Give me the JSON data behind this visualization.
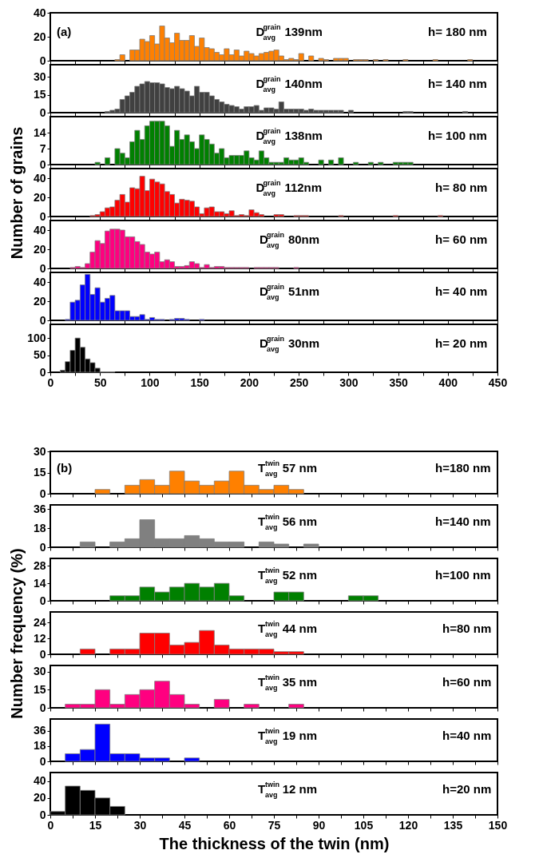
{
  "chart_data": [
    {
      "type": "histogram",
      "color": "#ff8000",
      "bins": [
        65,
        70,
        75,
        80,
        85,
        90,
        95,
        100,
        105,
        110,
        115,
        120,
        125,
        130,
        135,
        140,
        145,
        150,
        155,
        160,
        165,
        170,
        175,
        180,
        185,
        190,
        195,
        200,
        205,
        210,
        215,
        220,
        225,
        230,
        235,
        240,
        245,
        250,
        255,
        260,
        265,
        270,
        275,
        280,
        285,
        290,
        295,
        300,
        305,
        310,
        315,
        320,
        325,
        330,
        335,
        340,
        345,
        350,
        355,
        360,
        365,
        370,
        375,
        380,
        385,
        390,
        395,
        400,
        405,
        410,
        415,
        420,
        425
      ],
      "values": [
        1,
        5,
        0,
        9,
        9,
        18,
        16,
        21,
        14,
        29,
        19,
        15,
        23,
        17,
        17,
        21,
        12,
        19,
        11,
        10,
        7,
        5,
        10,
        5,
        9,
        4,
        8,
        6,
        4,
        6,
        7,
        8,
        9,
        4,
        1,
        2,
        1,
        6,
        0,
        4,
        0,
        2,
        1,
        0,
        2,
        2,
        2,
        0,
        1,
        1,
        1,
        0,
        1,
        0,
        1,
        0,
        0,
        0,
        1,
        0,
        0,
        0,
        0,
        0,
        1,
        0,
        0,
        0,
        0,
        0,
        0,
        1
      ],
      "xlim": [
        0,
        450
      ],
      "xticks": [
        0,
        {
          "value": 25,
          "label": null
        },
        50,
        {
          "value": 75,
          "label": null
        },
        100,
        {
          "value": 125,
          "label": null
        },
        150,
        {
          "value": 175,
          "label": null
        },
        200,
        {
          "value": 225,
          "label": null
        },
        250,
        {
          "value": 275,
          "label": null
        },
        300,
        {
          "value": 325,
          "label": null
        },
        350,
        {
          "value": 375,
          "label": null
        },
        400,
        {
          "value": 425,
          "label": null
        },
        450
      ],
      "ylim": [
        0,
        40
      ],
      "yticks": [
        0,
        20,
        40
      ],
      "tick_labels": "y",
      "annotations": [
        "(a)",
        "D$^{grain}$$_{avg}$ 139nm",
        "h= 180 nm"
      ]
    },
    {
      "type": "histogram",
      "color": "#404040",
      "bins": [
        55,
        60,
        65,
        70,
        75,
        80,
        85,
        90,
        95,
        100,
        105,
        110,
        115,
        120,
        125,
        130,
        135,
        140,
        145,
        150,
        155,
        160,
        165,
        170,
        175,
        180,
        185,
        190,
        195,
        200,
        205,
        210,
        215,
        220,
        225,
        230,
        235,
        240,
        245,
        250,
        255,
        260,
        265,
        270,
        275,
        280,
        285,
        290,
        295,
        300,
        305,
        310,
        315,
        320,
        325,
        330,
        335,
        340,
        345,
        350,
        355,
        360,
        365,
        370,
        375,
        380,
        385,
        390,
        395,
        400,
        405,
        410,
        415,
        420
      ],
      "values": [
        1,
        2,
        3,
        11,
        14,
        17,
        22,
        24,
        26,
        25,
        25,
        24,
        21,
        20,
        22,
        20,
        18,
        14,
        22,
        17,
        17,
        14,
        11,
        9,
        7,
        6,
        5,
        3,
        5,
        5,
        6,
        2,
        4,
        4,
        3,
        9,
        3,
        3,
        3,
        3,
        2,
        3,
        2,
        2,
        2,
        2,
        2,
        2,
        0,
        2,
        0,
        0,
        0,
        0,
        0,
        0,
        0,
        0,
        0,
        0,
        1,
        1,
        0,
        0,
        0,
        0,
        0,
        0,
        0,
        0,
        0,
        0,
        1
      ],
      "xlim": [
        0,
        450
      ],
      "xticks": [
        0,
        {
          "value": 25,
          "label": null
        },
        50,
        {
          "value": 75,
          "label": null
        },
        100,
        {
          "value": 125,
          "label": null
        },
        150,
        {
          "value": 175,
          "label": null
        },
        200,
        {
          "value": 225,
          "label": null
        },
        250,
        {
          "value": 275,
          "label": null
        },
        300,
        {
          "value": 325,
          "label": null
        },
        350,
        {
          "value": 375,
          "label": null
        },
        400,
        {
          "value": 425,
          "label": null
        },
        450
      ],
      "ylim": [
        0,
        40
      ],
      "yticks": [
        0,
        15,
        30
      ],
      "tick_labels": "y",
      "annotations": [
        "D$^{grain}$$_{avg}$ 140nm",
        "h= 140 nm"
      ]
    },
    {
      "type": "histogram",
      "color": "#008000",
      "bins": [
        45,
        50,
        55,
        60,
        65,
        70,
        75,
        80,
        85,
        90,
        95,
        100,
        105,
        110,
        115,
        120,
        125,
        130,
        135,
        140,
        145,
        150,
        155,
        160,
        165,
        170,
        175,
        180,
        185,
        190,
        195,
        200,
        205,
        210,
        215,
        220,
        225,
        230,
        235,
        240,
        245,
        250,
        255,
        260,
        265,
        270,
        275,
        280,
        285,
        290,
        295,
        300,
        305,
        310,
        315,
        320,
        325,
        330,
        335,
        340,
        345,
        350,
        355,
        360,
        365
      ],
      "values": [
        1,
        0,
        3,
        0,
        7,
        5,
        3,
        10,
        15,
        11,
        17,
        19,
        19,
        19,
        17,
        8,
        15,
        11,
        13,
        10,
        7,
        13,
        11,
        9,
        5,
        7,
        3,
        4,
        4,
        4,
        6,
        3,
        2,
        6,
        3,
        1,
        1,
        1,
        3,
        2,
        2,
        3,
        1,
        0,
        0,
        2,
        0,
        2,
        0,
        3,
        0,
        0,
        1,
        0,
        0,
        1,
        0,
        1,
        0,
        0,
        1,
        1,
        1,
        1
      ],
      "xlim": [
        0,
        450
      ],
      "xticks": [
        0,
        {
          "value": 25,
          "label": null
        },
        50,
        {
          "value": 75,
          "label": null
        },
        100,
        {
          "value": 125,
          "label": null
        },
        150,
        {
          "value": 175,
          "label": null
        },
        200,
        {
          "value": 225,
          "label": null
        },
        250,
        {
          "value": 275,
          "label": null
        },
        300,
        {
          "value": 325,
          "label": null
        },
        350,
        {
          "value": 375,
          "label": null
        },
        400,
        {
          "value": 425,
          "label": null
        },
        450
      ],
      "ylim": [
        0,
        21
      ],
      "yticks": [
        0,
        7,
        14
      ],
      "tick_labels": "y",
      "annotations": [
        "D$^{grain}$$_{avg}$ 138nm",
        "h= 100 nm"
      ]
    },
    {
      "type": "histogram",
      "color": "#ff0000",
      "bins": [
        40,
        45,
        50,
        55,
        60,
        65,
        70,
        75,
        80,
        85,
        90,
        95,
        100,
        105,
        110,
        115,
        120,
        125,
        130,
        135,
        140,
        145,
        150,
        155,
        160,
        165,
        170,
        175,
        180,
        185,
        190,
        195,
        200,
        205,
        210,
        215,
        220,
        225,
        230,
        235,
        240,
        245,
        250,
        255,
        260,
        265,
        270,
        275,
        280,
        285,
        290,
        295,
        300,
        305,
        310,
        315,
        320,
        325,
        330,
        335,
        340,
        345,
        350,
        355,
        360,
        365,
        370,
        375,
        380,
        385,
        390,
        395
      ],
      "values": [
        1,
        2,
        5,
        9,
        10,
        17,
        23,
        15,
        30,
        29,
        42,
        27,
        39,
        36,
        34,
        26,
        23,
        14,
        18,
        17,
        16,
        10,
        3,
        9,
        10,
        5,
        5,
        3,
        6,
        1,
        2,
        1,
        7,
        4,
        2,
        0,
        0,
        2,
        2,
        0,
        0,
        1,
        1,
        1,
        0,
        0,
        0,
        0,
        0,
        0,
        1,
        0,
        0,
        0,
        0,
        0,
        0,
        0,
        0,
        0,
        0,
        1,
        0,
        0,
        0,
        0,
        0,
        0,
        0,
        0,
        1
      ],
      "xlim": [
        0,
        450
      ],
      "xticks": [
        0,
        {
          "value": 25,
          "label": null
        },
        50,
        {
          "value": 75,
          "label": null
        },
        100,
        {
          "value": 125,
          "label": null
        },
        150,
        {
          "value": 175,
          "label": null
        },
        200,
        {
          "value": 225,
          "label": null
        },
        250,
        {
          "value": 275,
          "label": null
        },
        300,
        {
          "value": 325,
          "label": null
        },
        350,
        {
          "value": 375,
          "label": null
        },
        400,
        {
          "value": 425,
          "label": null
        },
        450
      ],
      "ylim": [
        0,
        50
      ],
      "yticks": [
        0,
        20,
        40
      ],
      "tick_labels": "y",
      "ylabel": "Number of grains",
      "annotations": [
        "D$^{grain}$$_{avg}$ 112nm",
        "h= 80 nm"
      ]
    },
    {
      "type": "histogram",
      "color": "#ff0080",
      "bins": [
        20,
        25,
        30,
        35,
        40,
        45,
        50,
        55,
        60,
        65,
        70,
        75,
        80,
        85,
        90,
        95,
        100,
        105,
        110,
        115,
        120,
        125,
        130,
        135,
        140,
        145,
        150,
        155,
        160,
        165,
        170,
        175,
        180,
        185,
        190,
        195,
        200,
        205,
        210,
        215,
        220,
        225,
        230,
        235,
        240,
        245,
        250
      ],
      "values": [
        1,
        2,
        1,
        5,
        17,
        29,
        26,
        39,
        41,
        41,
        40,
        33,
        33,
        28,
        25,
        17,
        15,
        17,
        7,
        9,
        7,
        2,
        2,
        3,
        7,
        5,
        1,
        4,
        1,
        2,
        2,
        1,
        1,
        1,
        1,
        1,
        0,
        1,
        1,
        1,
        1,
        1,
        0,
        0,
        0,
        1
      ],
      "xlim": [
        0,
        450
      ],
      "xticks": [
        0,
        {
          "value": 25,
          "label": null
        },
        50,
        {
          "value": 75,
          "label": null
        },
        100,
        {
          "value": 125,
          "label": null
        },
        150,
        {
          "value": 175,
          "label": null
        },
        200,
        {
          "value": 225,
          "label": null
        },
        250,
        {
          "value": 275,
          "label": null
        },
        300,
        {
          "value": 325,
          "label": null
        },
        350,
        {
          "value": 375,
          "label": null
        },
        400,
        {
          "value": 425,
          "label": null
        },
        450
      ],
      "ylim": [
        0,
        50
      ],
      "yticks": [
        0,
        20,
        40
      ],
      "tick_labels": "y",
      "annotations": [
        "D$^{grain}$$_{avg}$ 80nm",
        "h= 60 nm"
      ]
    },
    {
      "type": "histogram",
      "color": "#0000ff",
      "bins": [
        15,
        20,
        25,
        30,
        35,
        40,
        45,
        50,
        55,
        60,
        65,
        70,
        75,
        80,
        85,
        90,
        95,
        100,
        105,
        110,
        115,
        120,
        125,
        130,
        135,
        140,
        145,
        150,
        155
      ],
      "values": [
        1,
        19,
        21,
        37,
        48,
        27,
        34,
        19,
        23,
        26,
        10,
        10,
        10,
        4,
        4,
        6,
        1,
        3,
        1,
        1,
        0,
        1,
        2,
        2,
        1,
        0,
        0,
        1
      ],
      "xlim": [
        0,
        450
      ],
      "xticks": [
        0,
        {
          "value": 25,
          "label": null
        },
        50,
        {
          "value": 75,
          "label": null
        },
        100,
        {
          "value": 125,
          "label": null
        },
        150,
        {
          "value": 175,
          "label": null
        },
        200,
        {
          "value": 225,
          "label": null
        },
        250,
        {
          "value": 275,
          "label": null
        },
        300,
        {
          "value": 325,
          "label": null
        },
        350,
        {
          "value": 375,
          "label": null
        },
        400,
        {
          "value": 425,
          "label": null
        },
        450
      ],
      "ylim": [
        0,
        50
      ],
      "yticks": [
        0,
        20,
        40
      ],
      "tick_labels": "y",
      "annotations": [
        "D$^{grain}$$_{avg}$ 51nm",
        "h= 40 nm"
      ]
    },
    {
      "type": "histogram",
      "color": "#000000",
      "bins": [
        10,
        15,
        20,
        25,
        30,
        35,
        40,
        45,
        50,
        55,
        60,
        65
      ],
      "values": [
        6,
        31,
        64,
        100,
        73,
        39,
        28,
        12,
        1,
        1,
        1
      ],
      "xlim": [
        0,
        450
      ],
      "xticks": [
        0,
        {
          "value": 25,
          "label": null
        },
        50,
        {
          "value": 75,
          "label": null
        },
        100,
        {
          "value": 125,
          "label": null
        },
        150,
        {
          "value": 175,
          "label": null
        },
        200,
        {
          "value": 225,
          "label": null
        },
        250,
        {
          "value": 275,
          "label": null
        },
        300,
        {
          "value": 325,
          "label": null
        },
        350,
        {
          "value": 375,
          "label": null
        },
        400,
        {
          "value": 425,
          "label": null
        },
        450
      ],
      "ylim": [
        0,
        140
      ],
      "yticks": [
        0,
        50,
        100
      ],
      "annotations": [
        "D$^{grain}$$_{avg}$ 30nm",
        "h= 20 nm"
      ]
    },
    {
      "type": "histogram",
      "color": "#ff8000",
      "bins": [
        15,
        20,
        25,
        30,
        35,
        40,
        45,
        50,
        55,
        60,
        65,
        70,
        75,
        80,
        85
      ],
      "values": [
        3,
        0,
        6,
        10,
        6,
        16,
        9,
        6,
        9,
        16,
        6,
        3,
        6,
        3
      ],
      "xlim": [
        0,
        150
      ],
      "xticks": [
        0,
        {
          "value": 7.5,
          "label": null
        },
        15,
        {
          "value": 22.5,
          "label": null
        },
        30,
        {
          "value": 37.5,
          "label": null
        },
        45,
        {
          "value": 52.5,
          "label": null
        },
        60,
        {
          "value": 67.5,
          "label": null
        },
        75,
        {
          "value": 82.5,
          "label": null
        },
        90,
        {
          "value": 97.5,
          "label": null
        },
        105,
        {
          "value": 112.5,
          "label": null
        },
        120,
        {
          "value": 127.5,
          "label": null
        },
        135,
        {
          "value": 142.5,
          "label": null
        },
        150
      ],
      "ylim": [
        0,
        30
      ],
      "yticks": [
        0,
        15,
        30
      ],
      "tick_labels": "y",
      "annotations": [
        "(b)",
        "T$^{twin}$$_{avg}$ 57 nm",
        "h=180 nm"
      ]
    },
    {
      "type": "histogram",
      "color": "#808080",
      "bins": [
        10,
        15,
        20,
        25,
        30,
        35,
        40,
        45,
        50,
        55,
        60,
        65,
        70,
        75,
        80,
        85,
        90
      ],
      "values": [
        5,
        0,
        5,
        8,
        26,
        8,
        8,
        11,
        8,
        5,
        5,
        0,
        5,
        3,
        0,
        3
      ],
      "xlim": [
        0,
        150
      ],
      "xticks": [
        0,
        {
          "value": 7.5,
          "label": null
        },
        15,
        {
          "value": 22.5,
          "label": null
        },
        30,
        {
          "value": 37.5,
          "label": null
        },
        45,
        {
          "value": 52.5,
          "label": null
        },
        60,
        {
          "value": 67.5,
          "label": null
        },
        75,
        {
          "value": 82.5,
          "label": null
        },
        90,
        {
          "value": 97.5,
          "label": null
        },
        105,
        {
          "value": 112.5,
          "label": null
        },
        120,
        {
          "value": 127.5,
          "label": null
        },
        135,
        {
          "value": 142.5,
          "label": null
        },
        150
      ],
      "ylim": [
        0,
        40
      ],
      "yticks": [
        0,
        18,
        36
      ],
      "tick_labels": "y",
      "annotations": [
        "T$^{twin}$$_{avg}$ 56 nm",
        "h=140 nm"
      ]
    },
    {
      "type": "histogram",
      "color": "#008000",
      "bins": [
        20,
        25,
        30,
        35,
        40,
        45,
        50,
        55,
        60,
        65,
        70,
        75,
        80,
        85,
        90,
        95,
        100,
        105,
        110
      ],
      "values": [
        4,
        4,
        11,
        7,
        11,
        14,
        11,
        14,
        4,
        0,
        0,
        7,
        7,
        0,
        0,
        0,
        4,
        4
      ],
      "xlim": [
        0,
        150
      ],
      "xticks": [
        0,
        {
          "value": 7.5,
          "label": null
        },
        15,
        {
          "value": 22.5,
          "label": null
        },
        30,
        {
          "value": 37.5,
          "label": null
        },
        45,
        {
          "value": 52.5,
          "label": null
        },
        60,
        {
          "value": 67.5,
          "label": null
        },
        75,
        {
          "value": 82.5,
          "label": null
        },
        90,
        {
          "value": 97.5,
          "label": null
        },
        105,
        {
          "value": 112.5,
          "label": null
        },
        120,
        {
          "value": 127.5,
          "label": null
        },
        135,
        {
          "value": 142.5,
          "label": null
        },
        150
      ],
      "ylim": [
        0,
        34
      ],
      "yticks": [
        0,
        14,
        28
      ],
      "tick_labels": "y",
      "annotations": [
        "T$^{twin}$$_{avg}$ 52 nm",
        "h=100 nm"
      ]
    },
    {
      "type": "histogram",
      "color": "#ff0000",
      "bins": [
        10,
        15,
        20,
        25,
        30,
        35,
        40,
        45,
        50,
        55,
        60,
        65,
        70,
        75,
        80,
        85
      ],
      "values": [
        4,
        0,
        4,
        4,
        16,
        16,
        7,
        9,
        18,
        7,
        4,
        4,
        4,
        2,
        2
      ],
      "xlim": [
        0,
        150
      ],
      "xticks": [
        0,
        {
          "value": 7.5,
          "label": null
        },
        15,
        {
          "value": 22.5,
          "label": null
        },
        30,
        {
          "value": 37.5,
          "label": null
        },
        45,
        {
          "value": 52.5,
          "label": null
        },
        60,
        {
          "value": 67.5,
          "label": null
        },
        75,
        {
          "value": 82.5,
          "label": null
        },
        90,
        {
          "value": 97.5,
          "label": null
        },
        105,
        {
          "value": 112.5,
          "label": null
        },
        120,
        {
          "value": 127.5,
          "label": null
        },
        135,
        {
          "value": 142.5,
          "label": null
        },
        150
      ],
      "ylim": [
        0,
        32
      ],
      "yticks": [
        0,
        12,
        24
      ],
      "tick_labels": "y",
      "ylabel": "Number frequency (%)",
      "annotations": [
        "T$^{twin}$$_{avg}$ 44 nm",
        "h=80 nm"
      ]
    },
    {
      "type": "histogram",
      "color": "#ff0080",
      "bins": [
        5,
        10,
        15,
        20,
        25,
        30,
        35,
        40,
        45,
        50,
        55,
        60,
        65,
        70,
        75,
        80,
        85
      ],
      "values": [
        3,
        3,
        15,
        3,
        11,
        15,
        22,
        11,
        3,
        0,
        7,
        0,
        3,
        0,
        0,
        3
      ],
      "xlim": [
        0,
        150
      ],
      "xticks": [
        0,
        {
          "value": 7.5,
          "label": null
        },
        15,
        {
          "value": 22.5,
          "label": null
        },
        30,
        {
          "value": 37.5,
          "label": null
        },
        45,
        {
          "value": 52.5,
          "label": null
        },
        60,
        {
          "value": 67.5,
          "label": null
        },
        75,
        {
          "value": 82.5,
          "label": null
        },
        90,
        {
          "value": 97.5,
          "label": null
        },
        105,
        {
          "value": 112.5,
          "label": null
        },
        120,
        {
          "value": 127.5,
          "label": null
        },
        135,
        {
          "value": 142.5,
          "label": null
        },
        150
      ],
      "ylim": [
        0,
        35
      ],
      "yticks": [
        0,
        15,
        30
      ],
      "tick_labels": "y",
      "annotations": [
        "T$^{twin}$$_{avg}$ 35 nm",
        "h=60 nm"
      ]
    },
    {
      "type": "histogram",
      "color": "#0000ff",
      "bins": [
        5,
        10,
        15,
        20,
        25,
        30,
        35,
        40,
        45,
        50
      ],
      "values": [
        9,
        14,
        44,
        9,
        9,
        4,
        4,
        0,
        4
      ],
      "xlim": [
        0,
        150
      ],
      "xticks": [
        0,
        {
          "value": 7.5,
          "label": null
        },
        15,
        {
          "value": 22.5,
          "label": null
        },
        30,
        {
          "value": 37.5,
          "label": null
        },
        45,
        {
          "value": 52.5,
          "label": null
        },
        60,
        {
          "value": 67.5,
          "label": null
        },
        75,
        {
          "value": 82.5,
          "label": null
        },
        90,
        {
          "value": 97.5,
          "label": null
        },
        105,
        {
          "value": 112.5,
          "label": null
        },
        120,
        {
          "value": 127.5,
          "label": null
        },
        135,
        {
          "value": 142.5,
          "label": null
        },
        150
      ],
      "ylim": [
        0,
        50
      ],
      "yticks": [
        0,
        18,
        36
      ],
      "tick_labels": "y",
      "annotations": [
        "T$^{twin}$$_{avg}$ 19 nm",
        "h=40 nm"
      ]
    },
    {
      "type": "histogram",
      "color": "#000000",
      "bins": [
        0,
        5,
        10,
        15,
        20,
        25
      ],
      "values": [
        4,
        34,
        29,
        20,
        10
      ],
      "xlim": [
        0,
        150
      ],
      "xticks": [
        0,
        {
          "value": 7.5,
          "label": null
        },
        15,
        {
          "value": 22.5,
          "label": null
        },
        30,
        {
          "value": 37.5,
          "label": null
        },
        45,
        {
          "value": 52.5,
          "label": null
        },
        60,
        {
          "value": 67.5,
          "label": null
        },
        75,
        {
          "value": 82.5,
          "label": null
        },
        90,
        {
          "value": 97.5,
          "label": null
        },
        105,
        {
          "value": 112.5,
          "label": null
        },
        120,
        {
          "value": 127.5,
          "label": null
        },
        135,
        {
          "value": 142.5,
          "label": null
        },
        150
      ],
      "ylim": [
        0,
        50
      ],
      "yticks": [
        0,
        20,
        40
      ],
      "xlabel": "The thickness of the twin (nm)",
      "annotations": [
        "T$^{twin}$$_{avg}$ 12 nm",
        "h=20 nm"
      ]
    }
  ]
}
